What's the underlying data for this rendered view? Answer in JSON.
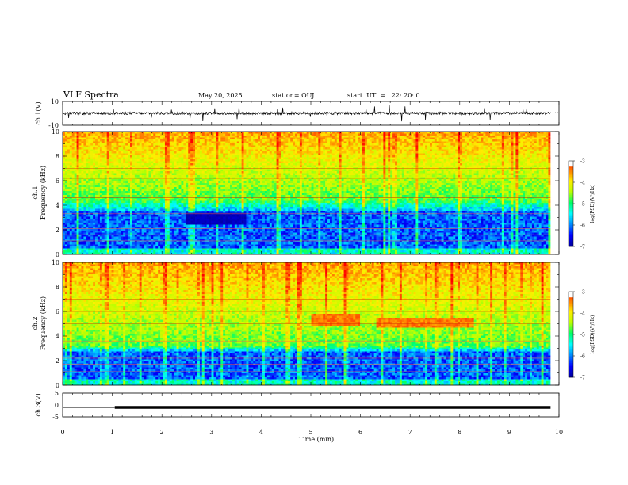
{
  "header": {
    "title": "VLF Spectra",
    "date": "May 20, 2025",
    "station": "station= OUJ",
    "start": "start  UT  =   22: 20: 0"
  },
  "chart_data": [
    {
      "type": "line",
      "panel": "ch1-waveform",
      "ylabel": "ch.1(V)",
      "ylim": [
        -10,
        10
      ],
      "yticks": [
        10,
        -10
      ],
      "baseline": 0,
      "xlim": [
        0,
        10
      ]
    },
    {
      "type": "heatmap",
      "panel": "ch1-spectrogram",
      "ylabel": "ch.1\nFrequency (kHz)",
      "ylim": [
        0,
        10
      ],
      "yticks": [
        0,
        2,
        4,
        6,
        8,
        10
      ],
      "xlim": [
        0,
        10
      ],
      "data_xmax": 9.83,
      "colorbar": {
        "label": "log(PSD)(V²/Hz)",
        "range": [
          -7,
          -3
        ],
        "ticks": [
          "-3",
          "-4",
          "-5",
          "-6",
          "-7"
        ]
      },
      "features": {
        "background_band_khz": [
          4.5,
          10
        ],
        "noise_band_khz": [
          0,
          3.6
        ],
        "dark_region_min": [
          2.5,
          3.7
        ],
        "dark_region_khz": [
          2.4,
          3.4
        ],
        "tones_khz": [
          7.0,
          6.2,
          4.6,
          3.3,
          2.8,
          2.1,
          1.6,
          1.1
        ]
      }
    },
    {
      "type": "heatmap",
      "panel": "ch2-spectrogram",
      "ylabel": "ch.2\nFrequency (kHz)",
      "ylim": [
        0,
        10
      ],
      "yticks": [
        0,
        2,
        4,
        6,
        8,
        10
      ],
      "xlim": [
        0,
        10
      ],
      "data_xmax": 9.83,
      "colorbar": {
        "label": "log(PSD)(V²/Hz)",
        "range": [
          -7,
          -3
        ],
        "ticks": [
          "-3",
          "-4",
          "-5",
          "-6",
          "-7"
        ]
      },
      "features": {
        "background_band_khz": [
          3.2,
          10
        ],
        "noise_band_khz": [
          0,
          2.8
        ],
        "tones_khz": [
          7.0,
          6.0,
          5.0,
          3.6,
          2.6,
          2.2,
          1.7,
          1.1
        ],
        "red_bands_min": [
          [
            6.3,
            8.3,
            5.1
          ],
          [
            5.0,
            6.0,
            5.3
          ]
        ]
      }
    },
    {
      "type": "line",
      "panel": "ch3-trigger",
      "ylabel": "ch.3(V)",
      "ylim": [
        -5,
        5
      ],
      "yticks": [
        5,
        0,
        -5
      ],
      "series": [
        {
          "x": [
            0,
            1.05
          ],
          "y": [
            -1,
            -1
          ],
          "thickness": "thin"
        },
        {
          "x": [
            1.05,
            9.83
          ],
          "y": [
            -1,
            -1
          ],
          "thickness": "thick"
        }
      ]
    }
  ],
  "xaxis": {
    "label": "Time (min)",
    "range": [
      0,
      10
    ],
    "ticks": [
      "0",
      "1",
      "2",
      "3",
      "4",
      "5",
      "6",
      "7",
      "8",
      "9",
      "10"
    ]
  },
  "colors": {
    "palette": [
      "#000099",
      "#0000ff",
      "#0088ff",
      "#00ffff",
      "#00ff66",
      "#bbff00",
      "#ffee00",
      "#ff7700",
      "#ff0000",
      "#ffffff"
    ]
  }
}
